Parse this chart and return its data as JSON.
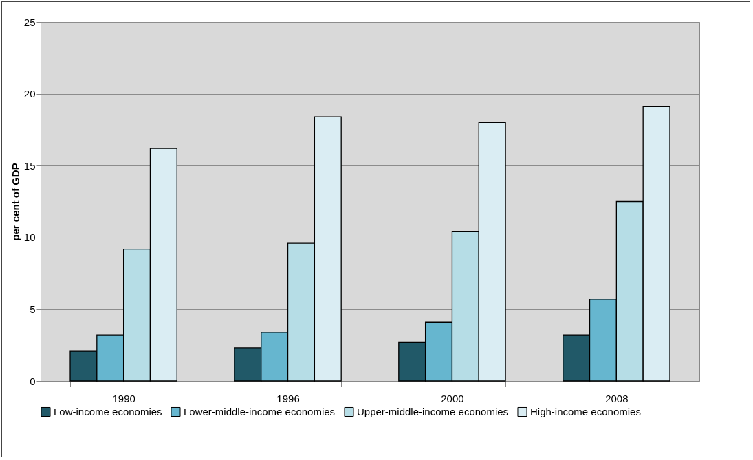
{
  "chart_data": {
    "type": "bar",
    "ylabel": "per cent of GDP",
    "categories": [
      "1990",
      "1996",
      "2000",
      "2008"
    ],
    "series": [
      {
        "name": "Low-income economies",
        "color": "#215968",
        "values": [
          2.1,
          2.3,
          2.7,
          3.2
        ]
      },
      {
        "name": "Lower-middle-income economies",
        "color": "#66b6cf",
        "values": [
          3.2,
          3.4,
          4.1,
          5.7
        ]
      },
      {
        "name": "Upper-middle-income economies",
        "color": "#b6dde6",
        "values": [
          9.2,
          9.6,
          10.4,
          12.5
        ]
      },
      {
        "name": "High-income economies",
        "color": "#daedf3",
        "values": [
          16.2,
          18.4,
          18.0,
          19.1
        ]
      }
    ],
    "ylim": [
      0,
      25
    ],
    "yticks": [
      0,
      5,
      10,
      15,
      20,
      25
    ],
    "grid": "y",
    "legend": "bottom"
  }
}
